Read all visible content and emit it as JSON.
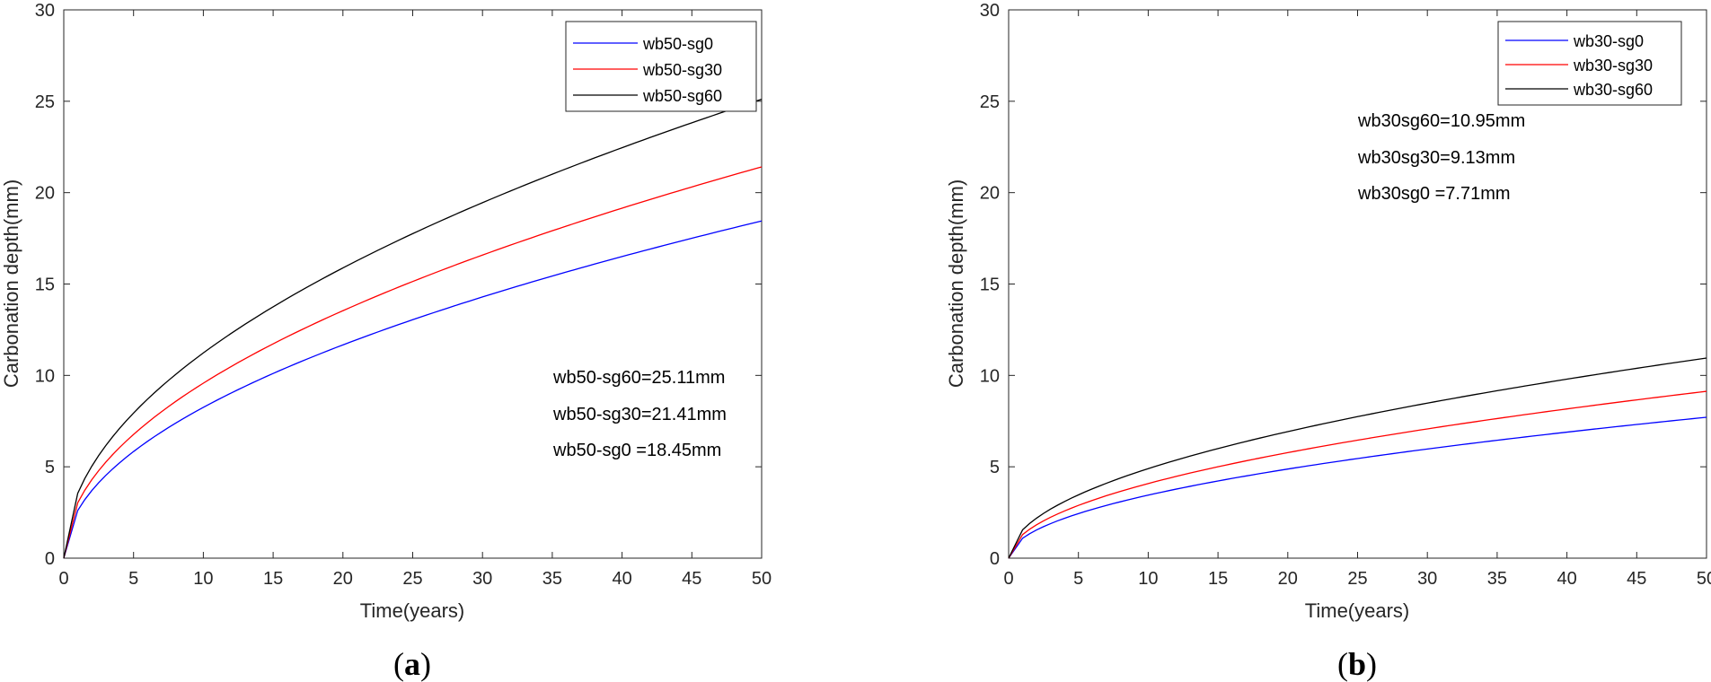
{
  "chart_data": [
    {
      "type": "line",
      "panel_label": {
        "open": "(",
        "letter": "a",
        "close": ")"
      },
      "xlabel": "Time(years)",
      "ylabel": "Carbonation depth(mm)",
      "xlim": [
        0,
        50
      ],
      "ylim": [
        0,
        30
      ],
      "xticks": [
        0,
        5,
        10,
        15,
        20,
        25,
        30,
        35,
        40,
        45,
        50
      ],
      "yticks": [
        0,
        5,
        10,
        15,
        20,
        25,
        30
      ],
      "legend_position": "top-right",
      "series": [
        {
          "name": "wb50-sg0",
          "color": "#0000ff",
          "x": [
            0,
            1,
            50
          ],
          "y": [
            0,
            2.61,
            18.45
          ]
        },
        {
          "name": "wb50-sg30",
          "color": "#ff0000",
          "x": [
            0,
            1,
            50
          ],
          "y": [
            0,
            3.03,
            21.41
          ]
        },
        {
          "name": "wb50-sg60",
          "color": "#000000",
          "x": [
            0,
            1,
            50
          ],
          "y": [
            0,
            3.55,
            25.11
          ]
        }
      ],
      "annotations": [
        "wb50-sg60=25.11mm",
        "wb50-sg30=21.41mm",
        "wb50-sg0 =18.45mm"
      ]
    },
    {
      "type": "line",
      "panel_label": {
        "open": "(",
        "letter": "b",
        "close": ")"
      },
      "xlabel": "Time(years)",
      "ylabel": "Carbonation depth(mm)",
      "xlim": [
        0,
        50
      ],
      "ylim": [
        0,
        30
      ],
      "xticks": [
        0,
        5,
        10,
        15,
        20,
        25,
        30,
        35,
        40,
        45,
        50
      ],
      "yticks": [
        0,
        5,
        10,
        15,
        20,
        25,
        30
      ],
      "legend_position": "top-right",
      "series": [
        {
          "name": "wb30-sg0",
          "color": "#0000ff",
          "x": [
            0,
            1,
            50
          ],
          "y": [
            0,
            1.09,
            7.71
          ]
        },
        {
          "name": "wb30-sg30",
          "color": "#ff0000",
          "x": [
            0,
            1,
            50
          ],
          "y": [
            0,
            1.29,
            9.13
          ]
        },
        {
          "name": "wb30-sg60",
          "color": "#000000",
          "x": [
            0,
            1,
            50
          ],
          "y": [
            0,
            1.55,
            10.95
          ]
        }
      ],
      "annotations": [
        "wb30sg60=10.95mm",
        "wb30sg30=9.13mm",
        "wb30sg0 =7.71mm"
      ]
    }
  ]
}
